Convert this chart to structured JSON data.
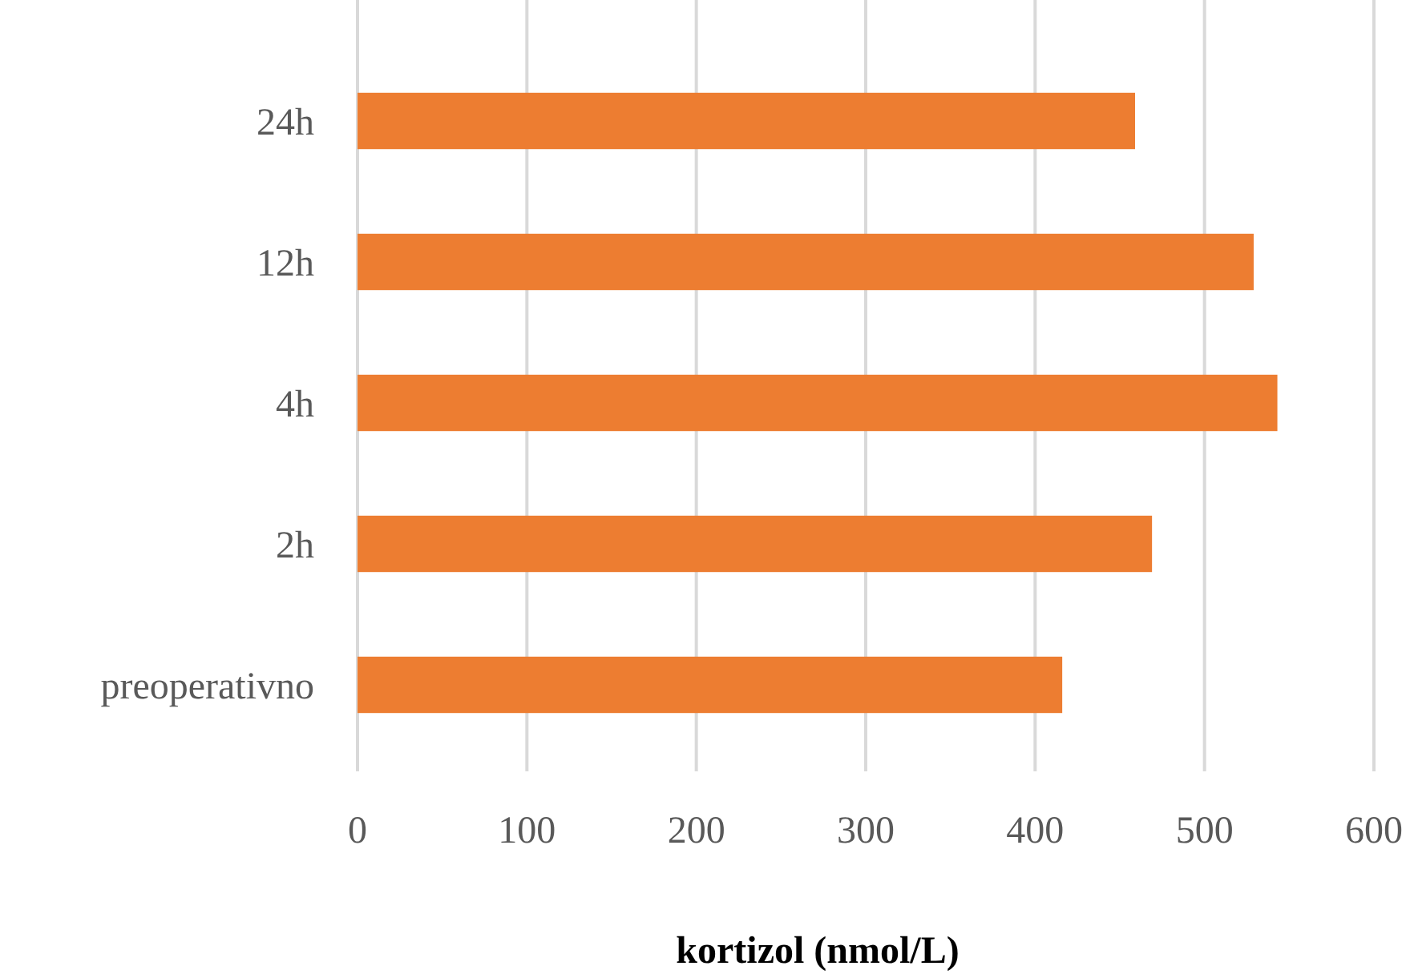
{
  "chart_data": {
    "type": "bar",
    "orientation": "horizontal",
    "categories": [
      "24h",
      "12h",
      "4h",
      "2h",
      "preoperativno"
    ],
    "values": [
      459,
      529,
      543,
      469,
      416
    ],
    "color": "#ed7d31",
    "xlim": [
      0,
      600
    ],
    "xticks": [
      0,
      100,
      200,
      300,
      400,
      500,
      600
    ],
    "grid": "x",
    "xlabel": "kortizol (nmol/L)"
  }
}
